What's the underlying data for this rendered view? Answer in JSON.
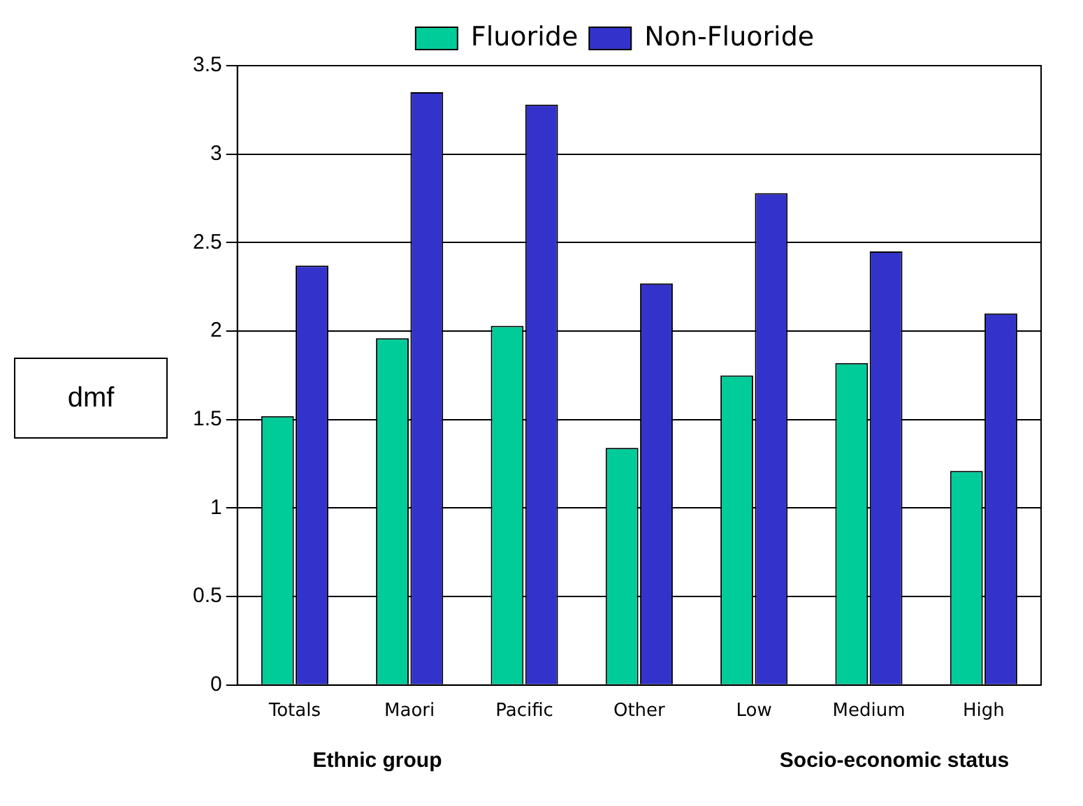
{
  "chart_data": {
    "type": "bar",
    "ylabel": "dmf",
    "categories": [
      "Totals",
      "Maori",
      "Pacific",
      "Other",
      "Low",
      "Medium",
      "High"
    ],
    "series": [
      {
        "name": "Fluoride",
        "color": "#00cc99",
        "values": [
          1.52,
          1.96,
          2.03,
          1.34,
          1.75,
          1.82,
          1.21
        ]
      },
      {
        "name": "Non-Fluoride",
        "color": "#3333cc",
        "values": [
          2.37,
          3.35,
          3.28,
          2.27,
          2.78,
          2.45,
          2.1
        ]
      }
    ],
    "ylim": [
      0,
      3.5
    ],
    "yticks": [
      0,
      0.5,
      1,
      1.5,
      2,
      2.5,
      3,
      3.5
    ],
    "grid": "y",
    "legend": "top",
    "annotations": [
      "Ethnic group",
      "Socio-economic status"
    ]
  }
}
